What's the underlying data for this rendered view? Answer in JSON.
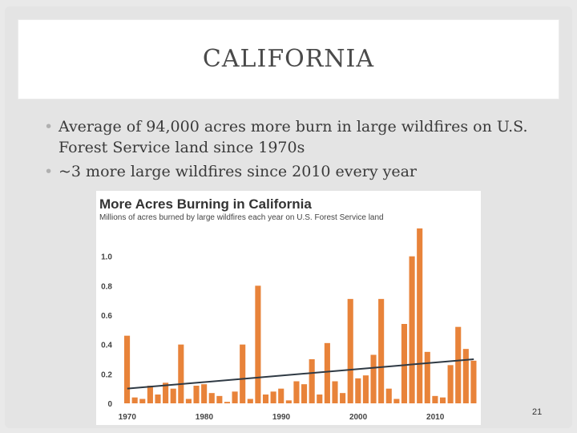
{
  "slide": {
    "title": "CALIFORNIA",
    "bullets": [
      "Average of 94,000 acres more burn in large wildfires on U.S. Forest Service land since 1970s",
      "~3 more large wildfires since 2010 every year"
    ],
    "page_number": "21"
  },
  "colors": {
    "bar": "#e8833a",
    "trend": "#2f3a44",
    "title_text": "#333333",
    "axis_text": "#444444"
  },
  "chart_data": {
    "type": "bar",
    "title": "More Acres Burning in California",
    "subtitle": "Millions of acres burned by large wildfires each year on U.S. Forest Service land",
    "x_tick_labels": [
      "1970",
      "1980",
      "1990",
      "2000",
      "2010"
    ],
    "y_tick_labels": [
      "0",
      "0.2",
      "0.4",
      "0.6",
      "0.8",
      "1.0"
    ],
    "ylim": [
      0,
      1.2
    ],
    "x": [
      1970,
      1971,
      1972,
      1973,
      1974,
      1975,
      1976,
      1977,
      1978,
      1979,
      1980,
      1981,
      1982,
      1983,
      1984,
      1985,
      1986,
      1987,
      1988,
      1989,
      1990,
      1991,
      1992,
      1993,
      1994,
      1995,
      1996,
      1997,
      1998,
      1999,
      2000,
      2001,
      2002,
      2003,
      2004,
      2005,
      2006,
      2007,
      2008,
      2009,
      2010,
      2011,
      2012,
      2013,
      2014,
      2015
    ],
    "values": [
      0.46,
      0.04,
      0.03,
      0.12,
      0.06,
      0.14,
      0.1,
      0.4,
      0.03,
      0.12,
      0.13,
      0.07,
      0.05,
      0.01,
      0.08,
      0.4,
      0.03,
      0.8,
      0.06,
      0.08,
      0.1,
      0.02,
      0.15,
      0.13,
      0.3,
      0.06,
      0.41,
      0.15,
      0.07,
      0.71,
      0.17,
      0.19,
      0.33,
      0.71,
      0.1,
      0.03,
      0.54,
      1.0,
      1.19,
      0.35,
      0.05,
      0.04,
      0.26,
      0.52,
      0.37,
      0.29
    ],
    "trend": {
      "start": 0.1,
      "end": 0.3
    },
    "grid": false,
    "legend": "none"
  }
}
